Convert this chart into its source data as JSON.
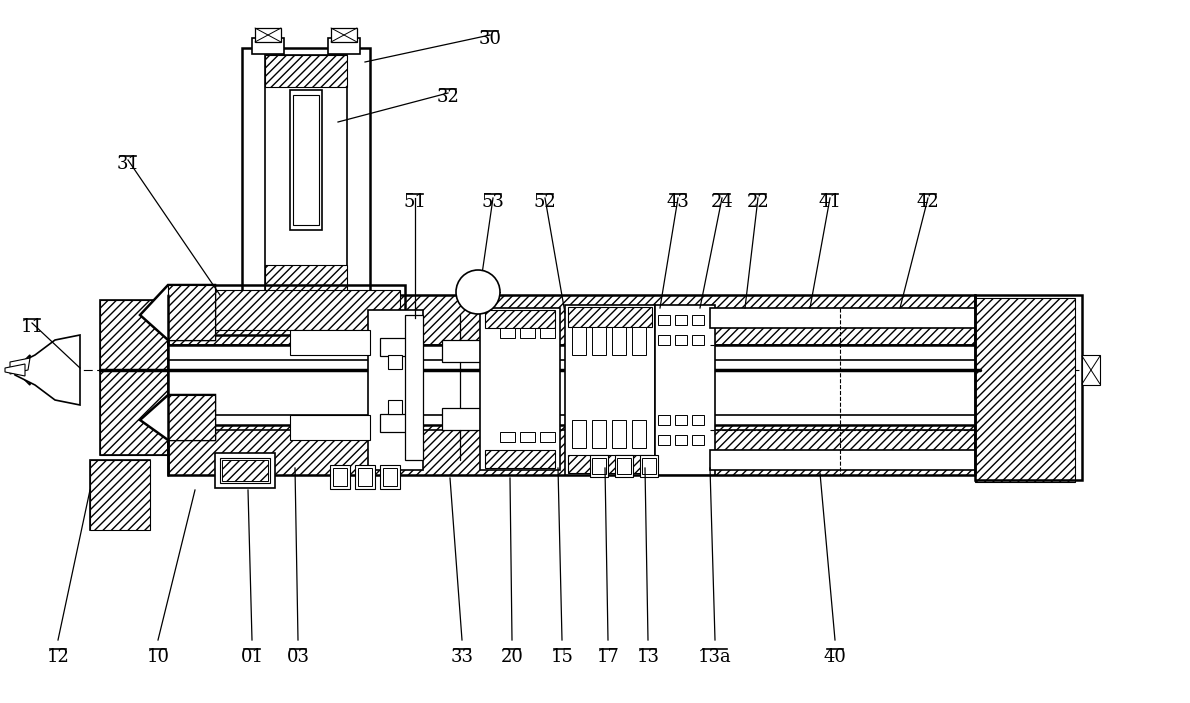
{
  "bg_color": "#ffffff",
  "line_color": "#000000",
  "figsize": [
    11.9,
    7.03
  ],
  "dpi": 100,
  "label_data": [
    [
      "30",
      490,
      30
    ],
    [
      "32",
      448,
      88
    ],
    [
      "31",
      128,
      155
    ],
    [
      "51",
      415,
      193
    ],
    [
      "53",
      493,
      193
    ],
    [
      "52",
      545,
      193
    ],
    [
      "43",
      678,
      193
    ],
    [
      "24",
      722,
      193
    ],
    [
      "22",
      758,
      193
    ],
    [
      "41",
      830,
      193
    ],
    [
      "42",
      928,
      193
    ],
    [
      "11",
      32,
      318
    ],
    [
      "12",
      58,
      648
    ],
    [
      "10",
      158,
      648
    ],
    [
      "01",
      252,
      648
    ],
    [
      "03",
      298,
      648
    ],
    [
      "33",
      462,
      648
    ],
    [
      "20",
      512,
      648
    ],
    [
      "15",
      562,
      648
    ],
    [
      "17",
      608,
      648
    ],
    [
      "13",
      648,
      648
    ],
    [
      "13a",
      715,
      648
    ],
    [
      "40",
      835,
      648
    ]
  ],
  "leader_lines": [
    [
      490,
      35,
      365,
      62
    ],
    [
      448,
      93,
      338,
      122
    ],
    [
      128,
      160,
      220,
      295
    ],
    [
      415,
      198,
      415,
      318
    ],
    [
      493,
      198,
      480,
      288
    ],
    [
      545,
      198,
      565,
      313
    ],
    [
      678,
      198,
      660,
      308
    ],
    [
      722,
      198,
      700,
      308
    ],
    [
      758,
      198,
      745,
      308
    ],
    [
      830,
      198,
      810,
      308
    ],
    [
      928,
      198,
      900,
      308
    ],
    [
      32,
      323,
      80,
      368
    ],
    [
      58,
      640,
      90,
      490
    ],
    [
      158,
      640,
      195,
      490
    ],
    [
      252,
      640,
      248,
      490
    ],
    [
      298,
      640,
      295,
      468
    ],
    [
      462,
      640,
      450,
      478
    ],
    [
      512,
      640,
      510,
      478
    ],
    [
      562,
      640,
      558,
      468
    ],
    [
      608,
      640,
      605,
      468
    ],
    [
      648,
      640,
      645,
      468
    ],
    [
      715,
      640,
      710,
      468
    ],
    [
      835,
      640,
      820,
      473
    ]
  ]
}
